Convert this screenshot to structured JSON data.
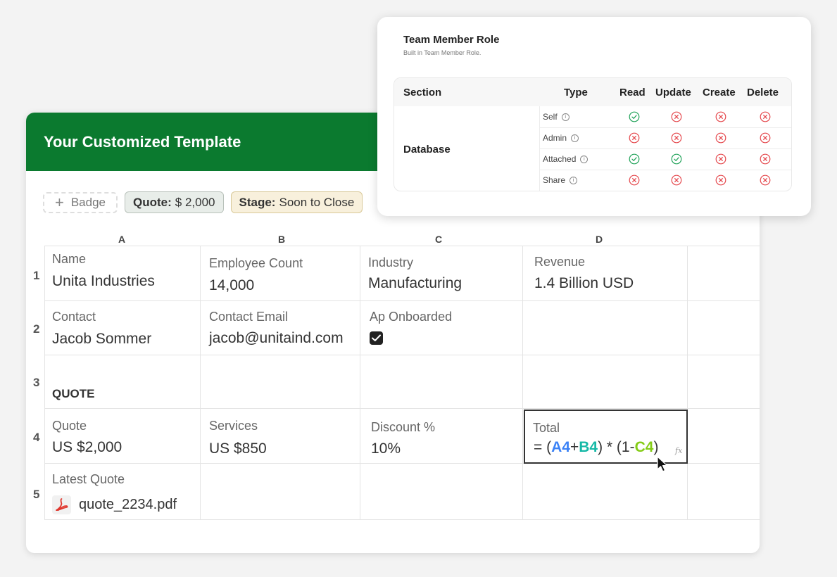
{
  "template": {
    "title": "Your Customized Template",
    "badges": {
      "add_label": "Badge",
      "quote_key": "Quote:",
      "quote_value": "$ 2,000",
      "stage_key": "Stage:",
      "stage_value": "Soon to Close"
    },
    "columns": [
      "A",
      "B",
      "C",
      "D"
    ],
    "rows": [
      "1",
      "2",
      "3",
      "4",
      "5"
    ],
    "cells": {
      "a1": {
        "label": "Name",
        "value": "Unita Industries"
      },
      "b1": {
        "label": "Employee Count",
        "value": "14,000"
      },
      "c1": {
        "label": "Industry",
        "value": "Manufacturing"
      },
      "d1": {
        "label": "Revenue",
        "value": "1.4 Billion USD"
      },
      "a2": {
        "label": "Contact",
        "value": "Jacob Sommer"
      },
      "b2": {
        "label": "Contact Email",
        "value": "jacob@unitaind.com"
      },
      "c2": {
        "label": "Ap Onboarded",
        "checked": true
      },
      "a3": {
        "value": "QUOTE"
      },
      "a4": {
        "label": "Quote",
        "value": "US $2,000"
      },
      "b4": {
        "label": "Services",
        "value": "US $850"
      },
      "c4": {
        "label": "Discount %",
        "value": "10%"
      },
      "d4": {
        "label": "Total",
        "formula": {
          "prefix": "= (",
          "ref1": "A4",
          "plus": "+",
          "ref2": "B4",
          "mid": ") * (1-",
          "ref3": "C4",
          "suffix": ")",
          "fx": "fx"
        }
      },
      "a5": {
        "label": "Latest Quote",
        "file": "quote_2234.pdf",
        "file_icon": "pdf-icon"
      }
    },
    "colors": {
      "header": "#0b7a2f",
      "ref_a": "#3b82f6",
      "ref_b": "#14b8a6",
      "ref_c": "#84cc16"
    }
  },
  "permissions": {
    "title": "Team Member Role",
    "subtitle": "Built in Team Member Role.",
    "headers": [
      "Section",
      "Type",
      "Read",
      "Update",
      "Create",
      "Delete"
    ],
    "section": "Database",
    "rows": [
      {
        "type": "Self",
        "read": true,
        "update": false,
        "create": false,
        "delete": false
      },
      {
        "type": "Admin",
        "read": false,
        "update": false,
        "create": false,
        "delete": false
      },
      {
        "type": "Attached",
        "read": true,
        "update": true,
        "create": false,
        "delete": false
      },
      {
        "type": "Share",
        "read": false,
        "update": false,
        "create": false,
        "delete": false
      }
    ],
    "colors": {
      "allowed": "#22a35a",
      "denied": "#e5484d"
    }
  }
}
